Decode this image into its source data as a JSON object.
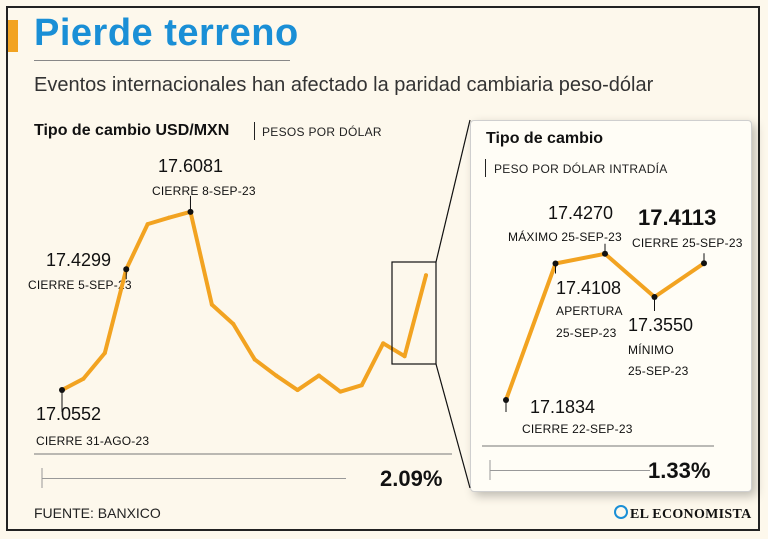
{
  "header": {
    "title": "Pierde terreno",
    "subtitle": "Eventos internacionales han afectado la paridad cambiaria peso-dólar"
  },
  "colors": {
    "title_blue": "#1a8fd6",
    "line_orange": "#f2a321",
    "ink": "#111111"
  },
  "chart_data": [
    {
      "type": "line",
      "title": "Tipo de cambio USD/MXN",
      "unit_label": "PESOS POR DÓLAR",
      "values": [
        17.0552,
        17.09,
        17.17,
        17.4299,
        17.57,
        17.59,
        17.6081,
        17.32,
        17.26,
        17.15,
        17.1,
        17.055,
        17.1,
        17.05,
        17.07,
        17.2,
        17.16,
        17.4113
      ],
      "ylim": [
        16.9,
        17.8
      ],
      "annotations": [
        {
          "index": 0,
          "value": "17.0552",
          "label": "CIERRE 31-AGO-23"
        },
        {
          "index": 3,
          "value": "17.4299",
          "label": "CIERRE 5-SEP-23"
        },
        {
          "index": 6,
          "value": "17.6081",
          "label": "CIERRE 8-SEP-23"
        }
      ],
      "change_pct": "2.09%"
    },
    {
      "type": "line",
      "title": "Tipo de cambio",
      "unit_label": "PESO POR DÓLAR INTRADÍA",
      "values": [
        17.1834,
        17.4108,
        17.427,
        17.355,
        17.4113
      ],
      "ylim": [
        17.15,
        17.5
      ],
      "annotations": [
        {
          "index": 0,
          "value": "17.1834",
          "label": "CIERRE 22-SEP-23"
        },
        {
          "index": 1,
          "value": "17.4108",
          "label": "APERTURA",
          "label2": "25-SEP-23"
        },
        {
          "index": 2,
          "value": "17.4270",
          "label": "MÁXIMO 25-SEP-23"
        },
        {
          "index": 3,
          "value": "17.3550",
          "label": "MÍNIMO",
          "label2": "25-SEP-23"
        },
        {
          "index": 4,
          "value": "17.4113",
          "label": "CIERRE 25-SEP-23"
        }
      ],
      "change_pct": "1.33%"
    }
  ],
  "footer": {
    "source": "FUENTE: BANXICO",
    "brand": "EL ECONOMISTA"
  }
}
